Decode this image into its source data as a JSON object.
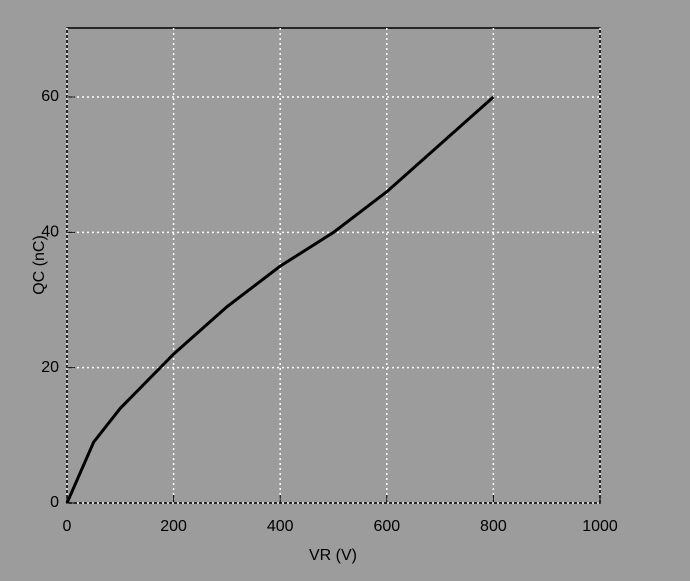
{
  "chart_data": {
    "type": "line",
    "x_label": "VR (V)",
    "y_label": "QC (nC)",
    "x": [
      0,
      50,
      100,
      200,
      300,
      400,
      500,
      600,
      700,
      800
    ],
    "series": [
      {
        "name": "QC",
        "color": "#000000",
        "values": [
          0,
          9,
          14,
          22,
          29,
          35,
          40,
          46,
          53,
          60
        ]
      }
    ],
    "xlim": [
      0,
      1000
    ],
    "xticks": [
      0,
      200,
      400,
      600,
      800,
      1000
    ],
    "ylim": [
      0,
      60
    ],
    "yticks": [
      0,
      20,
      40,
      60
    ],
    "grid": true
  }
}
